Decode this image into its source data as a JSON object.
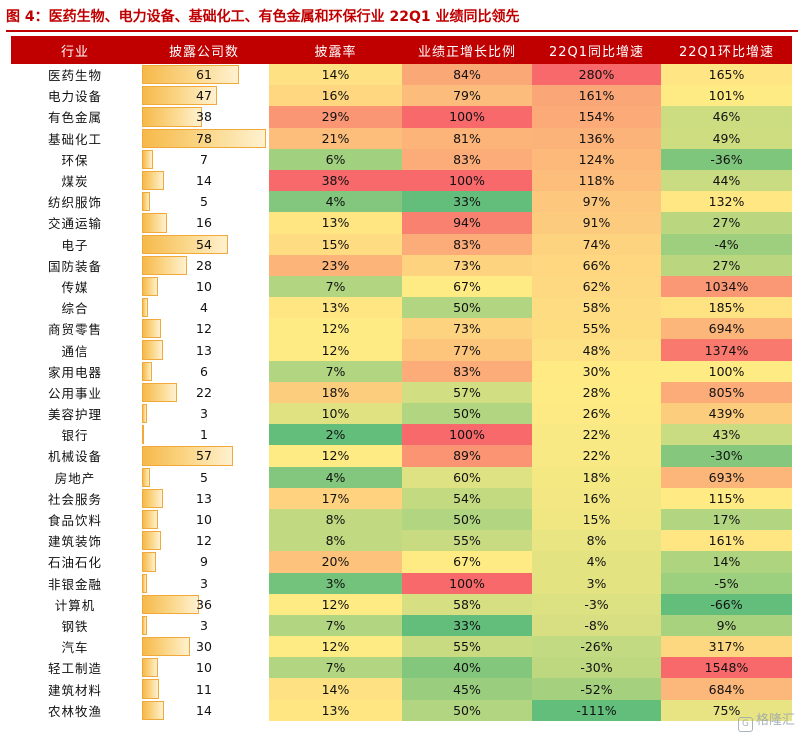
{
  "title": "图 4：医药生物、电力设备、基础化工、有色金属和环保行业 22Q1 业绩同比领先",
  "watermark": "格隆汇",
  "chart_data": {
    "type": "table",
    "title": "图 4：医药生物、电力设备、基础化工、有色金属和环保行业 22Q1 业绩同比领先",
    "columns": [
      "行业",
      "披露公司数",
      "披露率",
      "业绩正增长比例",
      "22Q1同比增速",
      "22Q1环比增速"
    ],
    "rows": [
      {
        "industry": "医药生物",
        "count": 61,
        "rate": "14%",
        "pos_ratio": "84%",
        "yoy": "280%",
        "qoq": "165%"
      },
      {
        "industry": "电力设备",
        "count": 47,
        "rate": "16%",
        "pos_ratio": "79%",
        "yoy": "161%",
        "qoq": "101%"
      },
      {
        "industry": "有色金属",
        "count": 38,
        "rate": "29%",
        "pos_ratio": "100%",
        "yoy": "154%",
        "qoq": "46%"
      },
      {
        "industry": "基础化工",
        "count": 78,
        "rate": "21%",
        "pos_ratio": "81%",
        "yoy": "136%",
        "qoq": "49%"
      },
      {
        "industry": "环保",
        "count": 7,
        "rate": "6%",
        "pos_ratio": "83%",
        "yoy": "124%",
        "qoq": "-36%"
      },
      {
        "industry": "煤炭",
        "count": 14,
        "rate": "38%",
        "pos_ratio": "100%",
        "yoy": "118%",
        "qoq": "44%"
      },
      {
        "industry": "纺织服饰",
        "count": 5,
        "rate": "4%",
        "pos_ratio": "33%",
        "yoy": "97%",
        "qoq": "132%"
      },
      {
        "industry": "交通运输",
        "count": 16,
        "rate": "13%",
        "pos_ratio": "94%",
        "yoy": "91%",
        "qoq": "27%"
      },
      {
        "industry": "电子",
        "count": 54,
        "rate": "15%",
        "pos_ratio": "83%",
        "yoy": "74%",
        "qoq": "-4%"
      },
      {
        "industry": "国防装备",
        "count": 28,
        "rate": "23%",
        "pos_ratio": "73%",
        "yoy": "66%",
        "qoq": "27%"
      },
      {
        "industry": "传媒",
        "count": 10,
        "rate": "7%",
        "pos_ratio": "67%",
        "yoy": "62%",
        "qoq": "1034%"
      },
      {
        "industry": "综合",
        "count": 4,
        "rate": "13%",
        "pos_ratio": "50%",
        "yoy": "58%",
        "qoq": "185%"
      },
      {
        "industry": "商贸零售",
        "count": 12,
        "rate": "12%",
        "pos_ratio": "73%",
        "yoy": "55%",
        "qoq": "694%"
      },
      {
        "industry": "通信",
        "count": 13,
        "rate": "12%",
        "pos_ratio": "77%",
        "yoy": "48%",
        "qoq": "1374%"
      },
      {
        "industry": "家用电器",
        "count": 6,
        "rate": "7%",
        "pos_ratio": "83%",
        "yoy": "30%",
        "qoq": "100%"
      },
      {
        "industry": "公用事业",
        "count": 22,
        "rate": "18%",
        "pos_ratio": "57%",
        "yoy": "28%",
        "qoq": "805%"
      },
      {
        "industry": "美容护理",
        "count": 3,
        "rate": "10%",
        "pos_ratio": "50%",
        "yoy": "26%",
        "qoq": "439%"
      },
      {
        "industry": "银行",
        "count": 1,
        "rate": "2%",
        "pos_ratio": "100%",
        "yoy": "22%",
        "qoq": "43%"
      },
      {
        "industry": "机械设备",
        "count": 57,
        "rate": "12%",
        "pos_ratio": "89%",
        "yoy": "22%",
        "qoq": "-30%"
      },
      {
        "industry": "房地产",
        "count": 5,
        "rate": "4%",
        "pos_ratio": "60%",
        "yoy": "18%",
        "qoq": "693%"
      },
      {
        "industry": "社会服务",
        "count": 13,
        "rate": "17%",
        "pos_ratio": "54%",
        "yoy": "16%",
        "qoq": "115%"
      },
      {
        "industry": "食品饮料",
        "count": 10,
        "rate": "8%",
        "pos_ratio": "50%",
        "yoy": "15%",
        "qoq": "17%"
      },
      {
        "industry": "建筑装饰",
        "count": 12,
        "rate": "8%",
        "pos_ratio": "55%",
        "yoy": "8%",
        "qoq": "161%"
      },
      {
        "industry": "石油石化",
        "count": 9,
        "rate": "20%",
        "pos_ratio": "67%",
        "yoy": "4%",
        "qoq": "14%"
      },
      {
        "industry": "非银金融",
        "count": 3,
        "rate": "3%",
        "pos_ratio": "100%",
        "yoy": "3%",
        "qoq": "-5%"
      },
      {
        "industry": "计算机",
        "count": 36,
        "rate": "12%",
        "pos_ratio": "58%",
        "yoy": "-3%",
        "qoq": "-66%"
      },
      {
        "industry": "钢铁",
        "count": 3,
        "rate": "7%",
        "pos_ratio": "33%",
        "yoy": "-8%",
        "qoq": "9%"
      },
      {
        "industry": "汽车",
        "count": 30,
        "rate": "12%",
        "pos_ratio": "55%",
        "yoy": "-26%",
        "qoq": "317%"
      },
      {
        "industry": "轻工制造",
        "count": 10,
        "rate": "7%",
        "pos_ratio": "40%",
        "yoy": "-30%",
        "qoq": "1548%"
      },
      {
        "industry": "建筑材料",
        "count": 11,
        "rate": "14%",
        "pos_ratio": "45%",
        "yoy": "-52%",
        "qoq": "684%"
      },
      {
        "industry": "农林牧渔",
        "count": 14,
        "rate": "13%",
        "pos_ratio": "50%",
        "yoy": "-111%",
        "qoq": "75%"
      }
    ],
    "color_scale": {
      "high": "#f8696b",
      "mid": "#ffeb84",
      "low": "#63be7b"
    },
    "databar_color": "#f6b94a"
  }
}
